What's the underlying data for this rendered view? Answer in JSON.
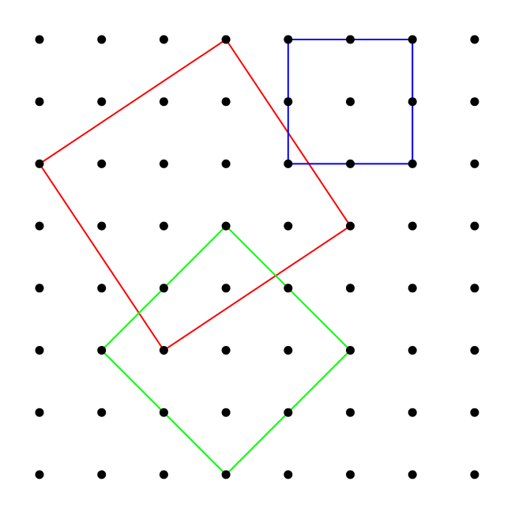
{
  "grid": {
    "rows": 8,
    "cols": 8,
    "dot_color": "#000000"
  },
  "shapes": [
    {
      "name": "red-square",
      "color": "#ff0000",
      "vertices": [
        [
          3,
          0
        ],
        [
          0,
          2
        ],
        [
          2,
          5
        ],
        [
          5,
          3
        ]
      ]
    },
    {
      "name": "blue-square",
      "color": "#0000ff",
      "vertices": [
        [
          4,
          0
        ],
        [
          6,
          0
        ],
        [
          6,
          2
        ],
        [
          4,
          2
        ]
      ]
    },
    {
      "name": "green-square",
      "color": "#00ff00",
      "vertices": [
        [
          3,
          3
        ],
        [
          1,
          5
        ],
        [
          3,
          7
        ],
        [
          5,
          5
        ]
      ]
    }
  ]
}
